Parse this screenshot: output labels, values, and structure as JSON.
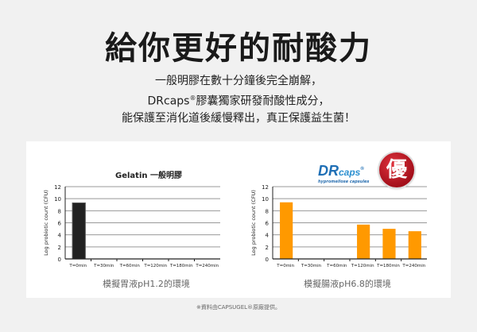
{
  "header": {
    "title": "給你更好的耐酸力",
    "lines": [
      "一般明膠在數十分鐘後完全崩解，",
      "膠囊獨家研發耐酸性成分，",
      "能保護至消化道後緩慢釋出，真正保護益生菌！"
    ],
    "brand": "DRcaps",
    "reg": "®"
  },
  "logo": {
    "main": "DR",
    "caps": "caps",
    "reg": "®",
    "sub": "hypromellose capsules"
  },
  "badge": {
    "label": "優",
    "color": "#c8101e"
  },
  "footer": "※資料由CAPSUGEL®原廠提供。",
  "chart_data": [
    {
      "type": "bar",
      "title": "Gelatin 一般明膠",
      "caption": "模擬胃液pH1.2的環境",
      "ylabel": "Log probiotic count (CFU)",
      "xlabel": "",
      "ylim": [
        0,
        12
      ],
      "yticks": [
        0,
        2,
        4,
        6,
        8,
        10,
        12
      ],
      "grid": true,
      "categories": [
        "T=0min",
        "T=30min",
        "T=60min",
        "T=120min",
        "T=180min",
        "T=240min"
      ],
      "values": [
        9.3,
        0,
        0,
        0,
        0,
        0
      ],
      "color": "#222222"
    },
    {
      "type": "bar",
      "title": "",
      "caption": "模擬腸液pH6.8的環境",
      "ylabel": "Log probiotic count (CFU)",
      "xlabel": "",
      "ylim": [
        0,
        12
      ],
      "yticks": [
        0,
        2,
        4,
        6,
        8,
        10,
        12
      ],
      "grid": true,
      "categories": [
        "T=0min",
        "T=30min",
        "T=60min",
        "T=120min",
        "T=180min",
        "T=240min"
      ],
      "values": [
        9.4,
        0,
        0,
        5.7,
        5.0,
        4.6
      ],
      "color": "#ff9900"
    }
  ]
}
